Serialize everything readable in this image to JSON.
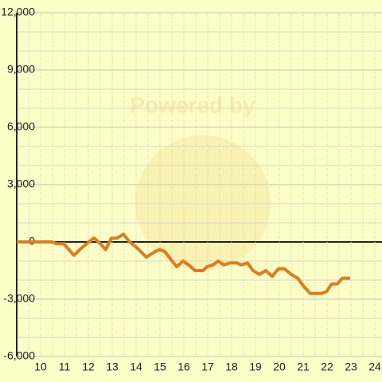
{
  "chart_data": {
    "type": "line",
    "watermark": "Powered by",
    "x": [
      9.0,
      10.47,
      10.7,
      10.97,
      11.4,
      11.73,
      12.23,
      12.43,
      12.73,
      12.97,
      13.2,
      13.47,
      13.73,
      14.03,
      14.43,
      14.8,
      15.0,
      15.2,
      15.7,
      15.97,
      16.2,
      16.47,
      16.8,
      16.97,
      17.23,
      17.43,
      17.67,
      17.93,
      18.23,
      18.4,
      18.67,
      18.9,
      19.17,
      19.43,
      19.7,
      19.97,
      20.2,
      20.5,
      20.77,
      21.0,
      21.3,
      21.53,
      21.77,
      21.97,
      22.2,
      22.43,
      22.63,
      22.97
    ],
    "series": [
      {
        "color": "#e07b20",
        "values": [
          0,
          0,
          -100,
          -100,
          -700,
          -300,
          200,
          0,
          -400,
          200,
          200,
          400,
          0,
          -300,
          -800,
          -500,
          -400,
          -500,
          -1300,
          -1000,
          -1200,
          -1500,
          -1500,
          -1300,
          -1200,
          -1000,
          -1200,
          -1100,
          -1100,
          -1200,
          -1100,
          -1500,
          -1700,
          -1500,
          -1800,
          -1400,
          -1400,
          -1700,
          -1900,
          -2300,
          -2700,
          -2700,
          -2700,
          -2600,
          -2200,
          -2200,
          -1900,
          -1900
        ]
      }
    ],
    "xlim": [
      9,
      24.3
    ],
    "ylim": [
      -6000,
      12000
    ],
    "xticks": [
      10,
      11,
      12,
      13,
      14,
      15,
      16,
      17,
      18,
      19,
      20,
      21,
      22,
      23,
      24
    ],
    "yticks": [
      {
        "value": -6000,
        "label": "-6,000"
      },
      {
        "value": -3000,
        "label": "-3,000"
      },
      0,
      {
        "value": 3000,
        "label": "3,000"
      },
      {
        "value": 6000,
        "label": "6,000"
      },
      {
        "value": 9000,
        "label": "9,000"
      },
      {
        "value": 12000,
        "label": "12,000"
      }
    ],
    "grid": true
  }
}
